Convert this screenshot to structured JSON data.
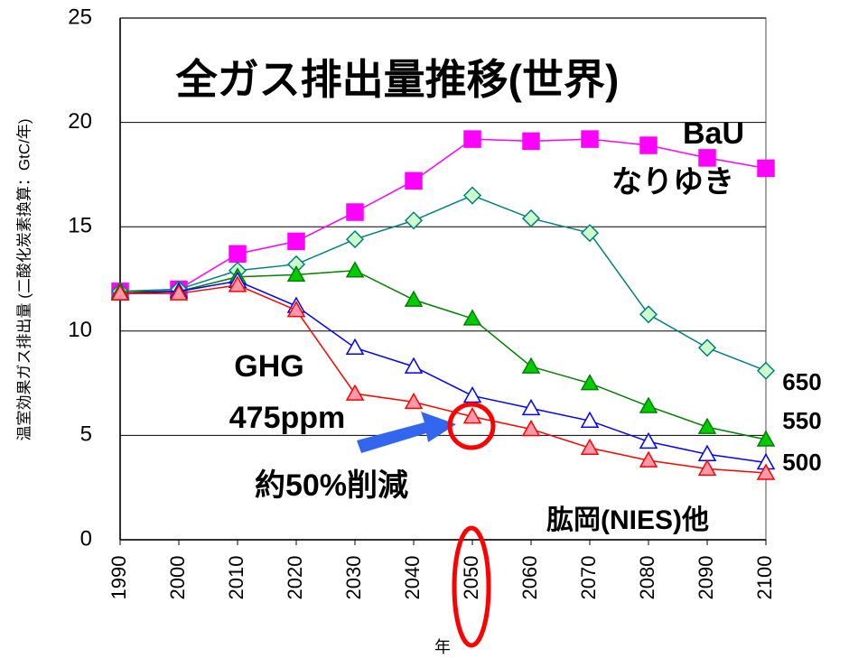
{
  "chart_data": {
    "type": "line",
    "title": "全ガス排出量推移(世界)",
    "y_label": "温室効果ガス排出量 (二酸化炭素換算：GtC/年)",
    "x_label": "年",
    "annotations": [
      "なりゆき",
      "GHG",
      "約50%削減",
      "肱岡(NIES)他"
    ],
    "categories": [
      "1990",
      "2000",
      "2010",
      "2020",
      "2030",
      "2040",
      "2050",
      "2060",
      "2070",
      "2080",
      "2090",
      "2100"
    ],
    "ylim": [
      0,
      25
    ],
    "yticks": [
      0,
      5,
      10,
      15,
      20,
      25
    ],
    "grid": true,
    "series": [
      {
        "name": "BaU",
        "color": "#ff00ff",
        "marker": "square",
        "fill": "#ff00ff",
        "values": [
          11.9,
          12.0,
          13.7,
          14.3,
          15.7,
          17.2,
          19.2,
          19.1,
          19.2,
          18.9,
          18.3,
          17.8
        ]
      },
      {
        "name": "650",
        "color": "#008080",
        "marker": "diamond",
        "fill": "#ccffcc",
        "values": [
          11.9,
          12.0,
          12.9,
          13.2,
          14.4,
          15.3,
          16.5,
          15.4,
          14.7,
          10.8,
          9.2,
          8.1
        ]
      },
      {
        "name": "550",
        "color": "#008000",
        "marker": "triangle",
        "fill": "#00cc00",
        "values": [
          11.9,
          11.9,
          12.6,
          12.7,
          12.9,
          11.5,
          10.6,
          8.3,
          7.5,
          6.4,
          5.4,
          4.8
        ]
      },
      {
        "name": "500",
        "color": "#0000ff",
        "marker": "triangle",
        "fill": "#ffffff",
        "values": [
          11.8,
          11.9,
          12.4,
          11.2,
          9.2,
          8.3,
          6.9,
          6.3,
          5.7,
          4.7,
          4.1,
          3.7
        ]
      },
      {
        "name": "475ppm",
        "color": "#ff0000",
        "marker": "triangle",
        "fill": "#ff99aa",
        "values": [
          11.8,
          11.8,
          12.2,
          11.0,
          7.0,
          6.6,
          5.9,
          5.3,
          4.4,
          3.8,
          3.4,
          3.2
        ]
      }
    ]
  }
}
